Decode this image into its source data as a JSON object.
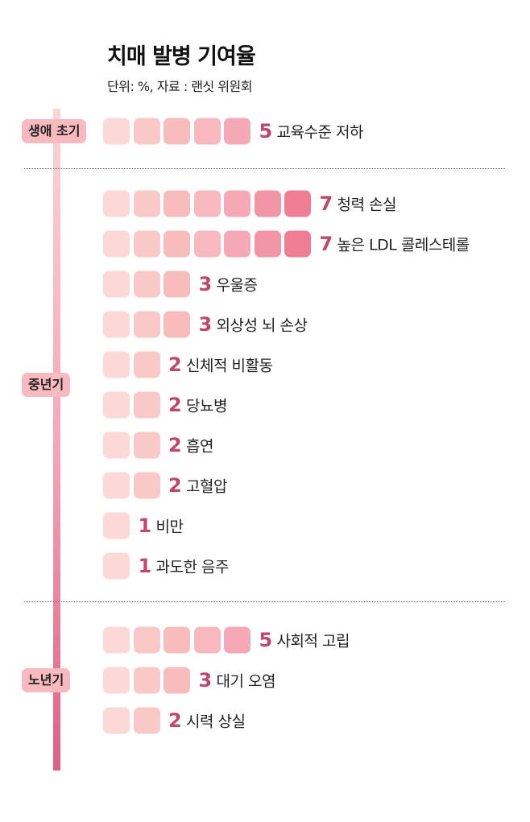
{
  "chart_data": {
    "type": "bar",
    "title": "치매 발병 기여율",
    "subtitle": "단위: %, 자료 : 랜싯 위원회",
    "unit": "%",
    "square_colors": [
      "#fcd8d6",
      "#f9c9c7",
      "#f7bcbb",
      "#f7b8c0",
      "#f5a9b6",
      "#f295a7",
      "#ef7e95"
    ],
    "value_color": "#c0476b",
    "stages": [
      {
        "label": "생애 초기",
        "items": [
          {
            "name": "교육수준 저하",
            "value": 5
          }
        ]
      },
      {
        "label": "중년기",
        "items": [
          {
            "name": "청력 손실",
            "value": 7
          },
          {
            "name": "높은 LDL 콜레스테롤",
            "value": 7
          },
          {
            "name": "우울증",
            "value": 3
          },
          {
            "name": "외상성 뇌 손상",
            "value": 3
          },
          {
            "name": "신체적 비활동",
            "value": 2
          },
          {
            "name": "당뇨병",
            "value": 2
          },
          {
            "name": "흡연",
            "value": 2
          },
          {
            "name": "고혈압",
            "value": 2
          },
          {
            "name": "비만",
            "value": 1
          },
          {
            "name": "과도한 음주",
            "value": 1
          }
        ]
      },
      {
        "label": "노년기",
        "items": [
          {
            "name": "사회적 고립",
            "value": 5
          },
          {
            "name": "대기 오염",
            "value": 3
          },
          {
            "name": "시력 상실",
            "value": 2
          }
        ]
      }
    ]
  }
}
